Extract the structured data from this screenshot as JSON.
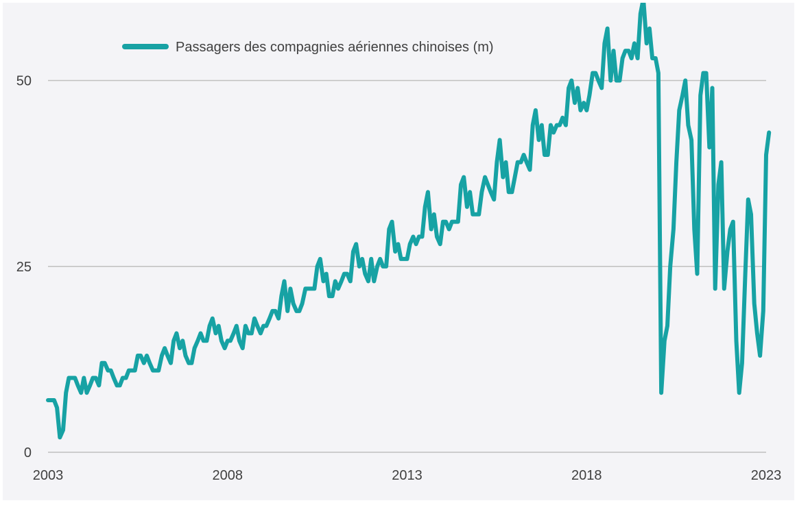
{
  "chart_data": {
    "type": "line",
    "title": "",
    "xlabel": "",
    "ylabel": "",
    "xlim": [
      2003,
      2023
    ],
    "ylim": [
      0,
      60
    ],
    "x_ticks": [
      "2003",
      "2008",
      "2013",
      "2018",
      "2023"
    ],
    "y_ticks": [
      "0",
      "25",
      "50"
    ],
    "grid": "horizontal",
    "legend_position": "top-left",
    "colors": {
      "series": "#17a2a4",
      "grid": "#bfbfbf",
      "background": "#f4f4f7"
    },
    "series": [
      {
        "name": "Passagers des compagnies aériennes chinoises (m)",
        "points": [
          [
            2003.0,
            7
          ],
          [
            2003.08,
            7
          ],
          [
            2003.17,
            7
          ],
          [
            2003.25,
            6
          ],
          [
            2003.33,
            2
          ],
          [
            2003.42,
            3
          ],
          [
            2003.5,
            8
          ],
          [
            2003.58,
            10
          ],
          [
            2003.67,
            10
          ],
          [
            2003.75,
            10
          ],
          [
            2003.83,
            9
          ],
          [
            2003.92,
            8
          ],
          [
            2004.0,
            10
          ],
          [
            2004.08,
            8
          ],
          [
            2004.17,
            9
          ],
          [
            2004.25,
            10
          ],
          [
            2004.33,
            10
          ],
          [
            2004.42,
            9
          ],
          [
            2004.5,
            12
          ],
          [
            2004.58,
            12
          ],
          [
            2004.67,
            11
          ],
          [
            2004.75,
            11
          ],
          [
            2004.83,
            10
          ],
          [
            2004.92,
            9
          ],
          [
            2005.0,
            9
          ],
          [
            2005.08,
            10
          ],
          [
            2005.17,
            10
          ],
          [
            2005.25,
            11
          ],
          [
            2005.33,
            11
          ],
          [
            2005.42,
            11
          ],
          [
            2005.5,
            13
          ],
          [
            2005.58,
            13
          ],
          [
            2005.67,
            12
          ],
          [
            2005.75,
            13
          ],
          [
            2005.83,
            12
          ],
          [
            2005.92,
            11
          ],
          [
            2006.0,
            11
          ],
          [
            2006.08,
            11
          ],
          [
            2006.17,
            13
          ],
          [
            2006.25,
            14
          ],
          [
            2006.33,
            13
          ],
          [
            2006.42,
            12
          ],
          [
            2006.5,
            15
          ],
          [
            2006.58,
            16
          ],
          [
            2006.67,
            14
          ],
          [
            2006.75,
            15
          ],
          [
            2006.83,
            13
          ],
          [
            2006.92,
            12
          ],
          [
            2007.0,
            12
          ],
          [
            2007.08,
            14
          ],
          [
            2007.17,
            15
          ],
          [
            2007.25,
            16
          ],
          [
            2007.33,
            15
          ],
          [
            2007.42,
            15
          ],
          [
            2007.5,
            17
          ],
          [
            2007.58,
            18
          ],
          [
            2007.67,
            16
          ],
          [
            2007.75,
            17
          ],
          [
            2007.83,
            15
          ],
          [
            2007.92,
            14
          ],
          [
            2008.0,
            15
          ],
          [
            2008.08,
            15
          ],
          [
            2008.17,
            16
          ],
          [
            2008.25,
            17
          ],
          [
            2008.33,
            15
          ],
          [
            2008.42,
            14
          ],
          [
            2008.5,
            17
          ],
          [
            2008.58,
            16
          ],
          [
            2008.67,
            16
          ],
          [
            2008.75,
            18
          ],
          [
            2008.83,
            17
          ],
          [
            2008.92,
            16
          ],
          [
            2009.0,
            17
          ],
          [
            2009.08,
            17
          ],
          [
            2009.17,
            18
          ],
          [
            2009.25,
            19
          ],
          [
            2009.33,
            19
          ],
          [
            2009.42,
            18
          ],
          [
            2009.5,
            21
          ],
          [
            2009.58,
            23
          ],
          [
            2009.67,
            19
          ],
          [
            2009.75,
            22
          ],
          [
            2009.83,
            20
          ],
          [
            2009.92,
            19
          ],
          [
            2010.0,
            19
          ],
          [
            2010.08,
            20
          ],
          [
            2010.17,
            22
          ],
          [
            2010.25,
            22
          ],
          [
            2010.33,
            22
          ],
          [
            2010.42,
            22
          ],
          [
            2010.5,
            25
          ],
          [
            2010.58,
            26
          ],
          [
            2010.67,
            23
          ],
          [
            2010.75,
            24
          ],
          [
            2010.83,
            21
          ],
          [
            2010.92,
            21
          ],
          [
            2011.0,
            23
          ],
          [
            2011.08,
            22
          ],
          [
            2011.17,
            23
          ],
          [
            2011.25,
            24
          ],
          [
            2011.33,
            24
          ],
          [
            2011.42,
            23
          ],
          [
            2011.5,
            27
          ],
          [
            2011.58,
            28
          ],
          [
            2011.67,
            25
          ],
          [
            2011.75,
            26
          ],
          [
            2011.83,
            24
          ],
          [
            2011.92,
            23
          ],
          [
            2012.0,
            26
          ],
          [
            2012.08,
            23
          ],
          [
            2012.17,
            25
          ],
          [
            2012.25,
            26
          ],
          [
            2012.33,
            25
          ],
          [
            2012.42,
            25
          ],
          [
            2012.5,
            30
          ],
          [
            2012.58,
            31
          ],
          [
            2012.67,
            27
          ],
          [
            2012.75,
            28
          ],
          [
            2012.83,
            26
          ],
          [
            2012.92,
            26
          ],
          [
            2013.0,
            26
          ],
          [
            2013.08,
            28
          ],
          [
            2013.17,
            29
          ],
          [
            2013.25,
            28
          ],
          [
            2013.33,
            29
          ],
          [
            2013.42,
            29
          ],
          [
            2013.5,
            33
          ],
          [
            2013.58,
            35
          ],
          [
            2013.67,
            30
          ],
          [
            2013.75,
            32
          ],
          [
            2013.83,
            29
          ],
          [
            2013.92,
            28
          ],
          [
            2014.0,
            31
          ],
          [
            2014.08,
            31
          ],
          [
            2014.17,
            30
          ],
          [
            2014.25,
            31
          ],
          [
            2014.33,
            31
          ],
          [
            2014.42,
            31
          ],
          [
            2014.5,
            36
          ],
          [
            2014.58,
            37
          ],
          [
            2014.67,
            33
          ],
          [
            2014.75,
            35
          ],
          [
            2014.83,
            32
          ],
          [
            2014.92,
            32
          ],
          [
            2015.0,
            32
          ],
          [
            2015.08,
            35
          ],
          [
            2015.17,
            37
          ],
          [
            2015.25,
            36
          ],
          [
            2015.33,
            35
          ],
          [
            2015.42,
            34
          ],
          [
            2015.5,
            39
          ],
          [
            2015.58,
            42
          ],
          [
            2015.67,
            37
          ],
          [
            2015.75,
            39
          ],
          [
            2015.83,
            35
          ],
          [
            2015.92,
            35
          ],
          [
            2016.0,
            37
          ],
          [
            2016.08,
            39
          ],
          [
            2016.17,
            39
          ],
          [
            2016.25,
            40
          ],
          [
            2016.33,
            39
          ],
          [
            2016.42,
            38
          ],
          [
            2016.5,
            44
          ],
          [
            2016.58,
            46
          ],
          [
            2016.67,
            42
          ],
          [
            2016.75,
            44
          ],
          [
            2016.83,
            40
          ],
          [
            2016.92,
            40
          ],
          [
            2017.0,
            44
          ],
          [
            2017.08,
            43
          ],
          [
            2017.17,
            44
          ],
          [
            2017.25,
            44
          ],
          [
            2017.33,
            45
          ],
          [
            2017.42,
            44
          ],
          [
            2017.5,
            49
          ],
          [
            2017.58,
            50
          ],
          [
            2017.67,
            47
          ],
          [
            2017.75,
            49
          ],
          [
            2017.83,
            46
          ],
          [
            2017.92,
            47
          ],
          [
            2018.0,
            46
          ],
          [
            2018.08,
            48
          ],
          [
            2018.17,
            51
          ],
          [
            2018.25,
            51
          ],
          [
            2018.33,
            50
          ],
          [
            2018.42,
            49
          ],
          [
            2018.5,
            55
          ],
          [
            2018.58,
            57
          ],
          [
            2018.67,
            50
          ],
          [
            2018.75,
            54
          ],
          [
            2018.83,
            50
          ],
          [
            2018.92,
            50
          ],
          [
            2019.0,
            53
          ],
          [
            2019.08,
            54
          ],
          [
            2019.17,
            54
          ],
          [
            2019.25,
            53
          ],
          [
            2019.33,
            55
          ],
          [
            2019.42,
            53
          ],
          [
            2019.5,
            59
          ],
          [
            2019.58,
            61
          ],
          [
            2019.67,
            55
          ],
          [
            2019.75,
            57
          ],
          [
            2019.83,
            53
          ],
          [
            2019.92,
            53
          ],
          [
            2020.0,
            51
          ],
          [
            2020.08,
            8
          ],
          [
            2020.17,
            15
          ],
          [
            2020.25,
            17
          ],
          [
            2020.33,
            25
          ],
          [
            2020.42,
            30
          ],
          [
            2020.5,
            39
          ],
          [
            2020.58,
            46
          ],
          [
            2020.67,
            48
          ],
          [
            2020.75,
            50
          ],
          [
            2020.83,
            44
          ],
          [
            2020.92,
            42
          ],
          [
            2021.0,
            30
          ],
          [
            2021.08,
            24
          ],
          [
            2021.17,
            48
          ],
          [
            2021.25,
            51
          ],
          [
            2021.33,
            51
          ],
          [
            2021.42,
            41
          ],
          [
            2021.5,
            49
          ],
          [
            2021.58,
            22
          ],
          [
            2021.67,
            36
          ],
          [
            2021.75,
            39
          ],
          [
            2021.83,
            22
          ],
          [
            2021.92,
            27
          ],
          [
            2022.0,
            30
          ],
          [
            2022.08,
            31
          ],
          [
            2022.17,
            15
          ],
          [
            2022.25,
            8
          ],
          [
            2022.33,
            12
          ],
          [
            2022.42,
            24
          ],
          [
            2022.5,
            34
          ],
          [
            2022.58,
            32
          ],
          [
            2022.67,
            20
          ],
          [
            2022.75,
            16
          ],
          [
            2022.83,
            13
          ],
          [
            2022.92,
            19
          ],
          [
            2023.0,
            40
          ],
          [
            2023.08,
            43
          ]
        ]
      }
    ]
  }
}
